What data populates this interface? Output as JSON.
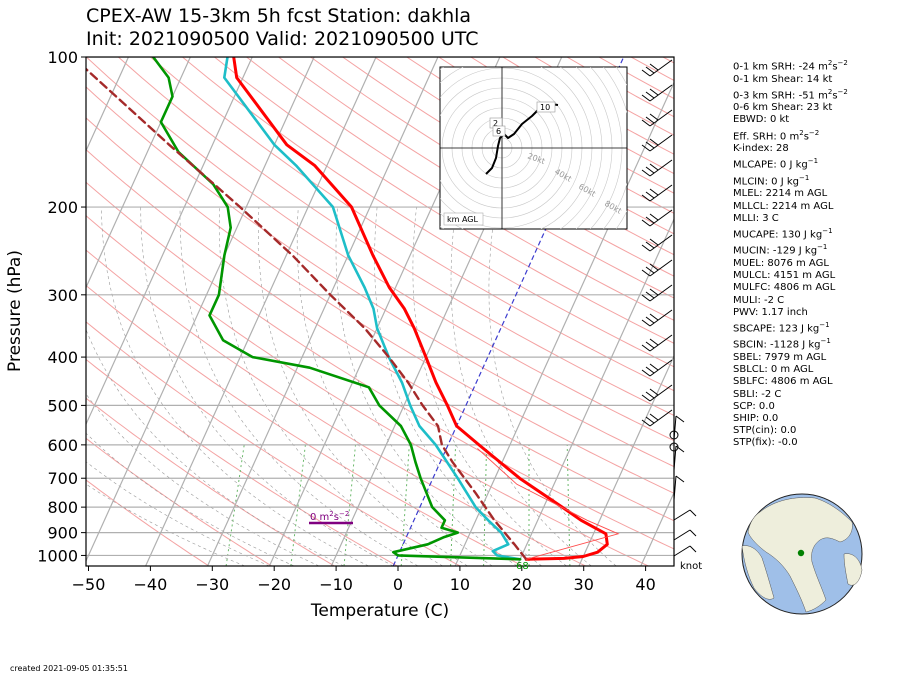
{
  "title_line1": "CPEX-AW 15-3km  5h fcst  Station: dakhla",
  "title_line2": "Init: 2021090500  Valid: 2021090500 UTC",
  "created": "created 2021-09-05 01:35:51",
  "knot_label": "knot",
  "indices": [
    {
      "text": "0-1 km SRH: -24 m",
      "sup": "2",
      "tail": "s",
      "sup2": "−2"
    },
    {
      "text": "0-1 km Shear: 14 kt"
    },
    {
      "text": "0-3 km SRH: -51 m",
      "sup": "2",
      "tail": "s",
      "sup2": "−2"
    },
    {
      "text": "0-6 km Shear: 23 kt"
    },
    {
      "text": "EBWD: 0 kt"
    },
    {
      "text": "Eff. SRH: 0 m",
      "sup": "2",
      "tail": "s",
      "sup2": "−2"
    },
    {
      "text": "K-index: 28"
    },
    {
      "text": "MLCAPE: 0 J kg",
      "sup": "−1"
    },
    {
      "text": "MLCIN: 0 J kg",
      "sup": "−1"
    },
    {
      "text": "MLEL: 2214 m AGL"
    },
    {
      "text": "MLLCL: 2214 m AGL"
    },
    {
      "text": "MLLI: 3 C"
    },
    {
      "text": "MUCAPE: 130 J kg",
      "sup": "−1"
    },
    {
      "text": "MUCIN: -129 J kg",
      "sup": "−1"
    },
    {
      "text": "MUEL: 8076 m AGL"
    },
    {
      "text": "MULCL: 4151 m AGL"
    },
    {
      "text": "MULFC: 4806 m AGL"
    },
    {
      "text": "MULI: -2 C"
    },
    {
      "text": "PWV: 1.17 inch"
    },
    {
      "text": "SBCAPE: 123 J kg",
      "sup": "−1"
    },
    {
      "text": "SBCIN: -1128 J kg",
      "sup": "−1"
    },
    {
      "text": "SBEL: 7979 m AGL"
    },
    {
      "text": "SBLCL: 0 m AGL"
    },
    {
      "text": "SBLFC: 4806 m AGL"
    },
    {
      "text": "SBLI: -2 C"
    },
    {
      "text": "SCP: 0.0"
    },
    {
      "text": "SHIP: 0.0"
    },
    {
      "text": "STP(cin): 0.0"
    },
    {
      "text": "STP(fix): -0.0"
    }
  ],
  "chart_data": {
    "type": "line",
    "subtype": "skew-T log-p",
    "xlabel": "Temperature (C)",
    "ylabel": "Pressure (hPa)",
    "xlim": [
      -50,
      45
    ],
    "ylim": [
      1050,
      100
    ],
    "x_ticks": [
      -50,
      -40,
      -30,
      -20,
      -10,
      0,
      10,
      20,
      30,
      40
    ],
    "y_ticks": [
      100,
      200,
      300,
      400,
      500,
      600,
      700,
      800,
      900,
      1000
    ],
    "y_scale": "log",
    "series": [
      {
        "role": "temperature",
        "color": "#ff0000",
        "points": [
          [
            1018,
            21
          ],
          [
            1014,
            27
          ],
          [
            1005,
            30
          ],
          [
            985,
            32
          ],
          [
            950,
            33
          ],
          [
            905,
            32
          ],
          [
            850,
            27
          ],
          [
            800,
            23
          ],
          [
            700,
            14
          ],
          [
            600,
            5
          ],
          [
            550,
            0
          ],
          [
            500,
            -3
          ],
          [
            450,
            -6.5
          ],
          [
            400,
            -10
          ],
          [
            350,
            -14
          ],
          [
            320,
            -17
          ],
          [
            290,
            -21
          ],
          [
            250,
            -26
          ],
          [
            200,
            -33
          ],
          [
            165,
            -42
          ],
          [
            150,
            -48
          ],
          [
            130,
            -54
          ],
          [
            110,
            -61
          ],
          [
            100,
            -63
          ]
        ]
      },
      {
        "role": "dewpoint",
        "color": "#1ebec8",
        "points": [
          [
            1018,
            20
          ],
          [
            1000,
            16
          ],
          [
            980,
            15
          ],
          [
            950,
            17
          ],
          [
            900,
            15
          ],
          [
            850,
            12
          ],
          [
            800,
            9
          ],
          [
            700,
            4
          ],
          [
            600,
            -2
          ],
          [
            550,
            -6
          ],
          [
            500,
            -9
          ],
          [
            450,
            -12
          ],
          [
            400,
            -16
          ],
          [
            350,
            -20
          ],
          [
            320,
            -22
          ],
          [
            290,
            -25
          ],
          [
            250,
            -30
          ],
          [
            200,
            -36
          ],
          [
            165,
            -45
          ],
          [
            150,
            -50
          ],
          [
            130,
            -56
          ],
          [
            110,
            -63
          ],
          [
            100,
            -64
          ]
        ]
      },
      {
        "role": "wetbulb",
        "color": "#009600",
        "points": [
          [
            1018,
            20
          ],
          [
            1000,
            0
          ],
          [
            985,
            -1
          ],
          [
            950,
            4
          ],
          [
            920,
            6
          ],
          [
            900,
            8
          ],
          [
            880,
            5
          ],
          [
            850,
            5
          ],
          [
            800,
            2
          ],
          [
            700,
            -2
          ],
          [
            650,
            -4
          ],
          [
            600,
            -6
          ],
          [
            550,
            -9
          ],
          [
            500,
            -14
          ],
          [
            460,
            -17
          ],
          [
            420,
            -28
          ],
          [
            400,
            -38
          ],
          [
            370,
            -44
          ],
          [
            330,
            -48
          ],
          [
            300,
            -48
          ],
          [
            250,
            -50
          ],
          [
            220,
            -51
          ],
          [
            200,
            -53
          ],
          [
            180,
            -57
          ],
          [
            155,
            -65
          ],
          [
            135,
            -70
          ],
          [
            120,
            -70
          ],
          [
            110,
            -72
          ],
          [
            100,
            -76
          ]
        ]
      },
      {
        "role": "parcel",
        "color": "#a52a2a",
        "dashed": true,
        "points": [
          [
            1018,
            21
          ],
          [
            950,
            18
          ],
          [
            850,
            13
          ],
          [
            750,
            8
          ],
          [
            650,
            2
          ],
          [
            600,
            -1
          ],
          [
            550,
            -3
          ],
          [
            500,
            -7
          ],
          [
            450,
            -11
          ],
          [
            400,
            -16
          ],
          [
            350,
            -22
          ],
          [
            300,
            -30
          ],
          [
            250,
            -39
          ],
          [
            200,
            -51
          ],
          [
            150,
            -67
          ],
          [
            100,
            -89
          ]
        ]
      }
    ],
    "annotations": [
      {
        "text": "0 m",
        "sup": "2",
        "tail": "s",
        "sup2": "−2",
        "color": "#800080"
      },
      {
        "text": "68",
        "color": "#009600"
      }
    ],
    "hodograph": {
      "label": "km AGL",
      "ring_labels": [
        "20kt",
        "40kt",
        "60kt",
        "80kt"
      ],
      "height_labels": [
        "2",
        "6",
        "10"
      ]
    }
  }
}
